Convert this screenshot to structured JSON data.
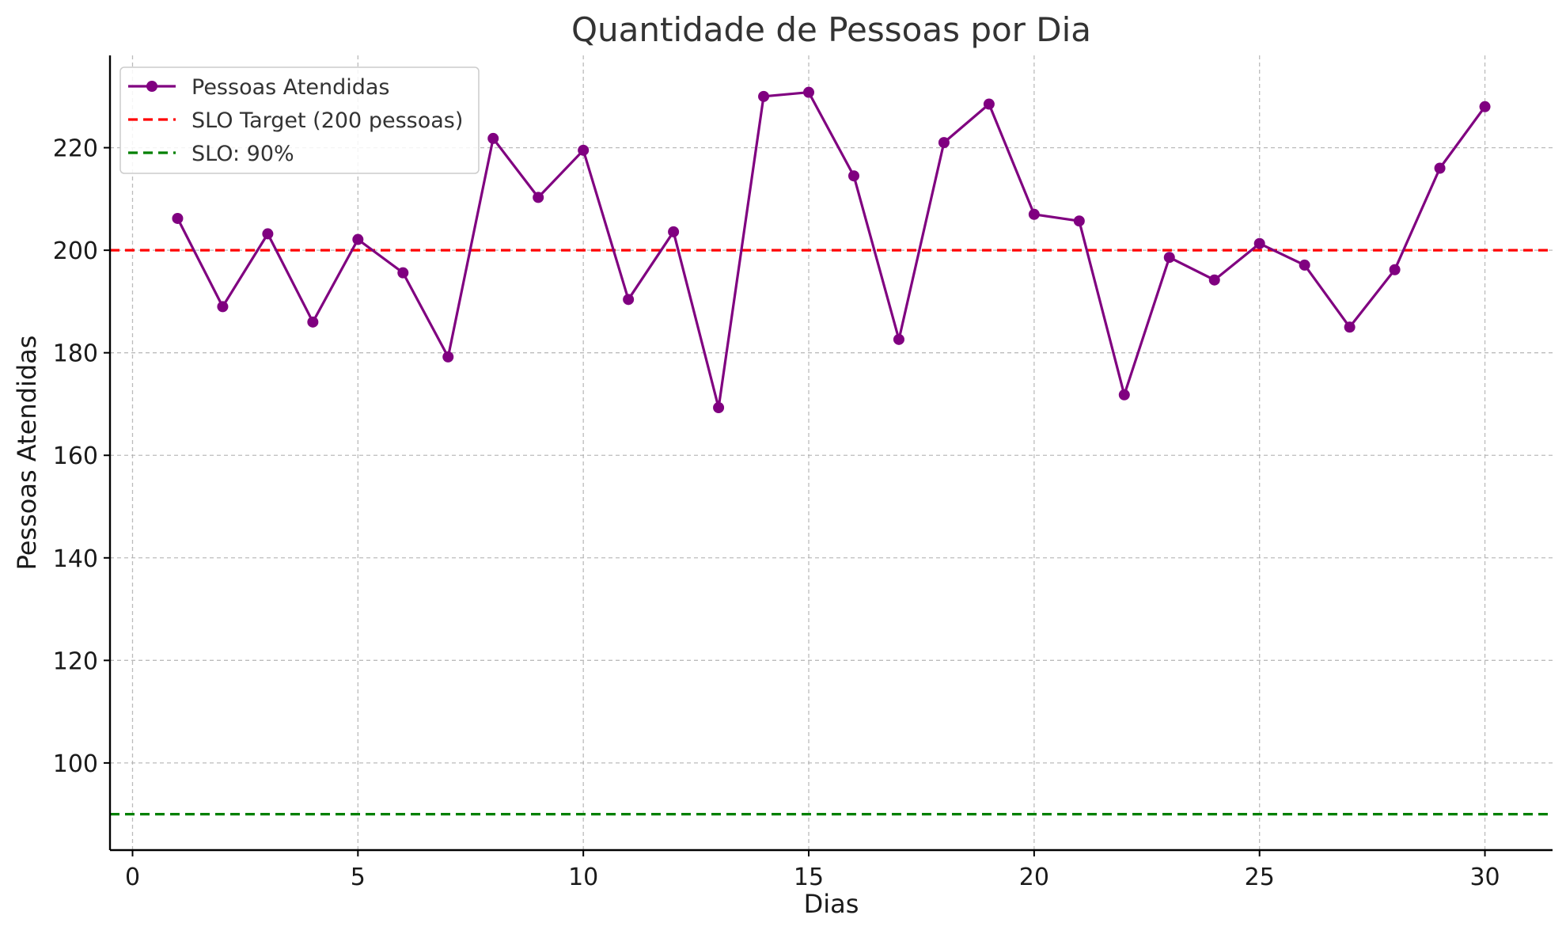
{
  "chart_data": {
    "type": "line",
    "title": "Quantidade de Pessoas por Dia",
    "xlabel": "Dias",
    "ylabel": "Pessoas Atendidas",
    "xlim": [
      -0.5,
      31.5
    ],
    "ylim": [
      83,
      238
    ],
    "xticks": [
      0,
      5,
      10,
      15,
      20,
      25,
      30
    ],
    "yticks": [
      100,
      120,
      140,
      160,
      180,
      200,
      220
    ],
    "grid": true,
    "legend_position": "top-left",
    "series": [
      {
        "name": "Pessoas Atendidas",
        "color": "#800080",
        "marker": "circle",
        "x": [
          1,
          2,
          3,
          4,
          5,
          6,
          7,
          8,
          9,
          10,
          11,
          12,
          13,
          14,
          15,
          16,
          17,
          18,
          19,
          20,
          21,
          22,
          23,
          24,
          25,
          26,
          27,
          28,
          29,
          30
        ],
        "values": [
          206.2,
          189,
          203.2,
          186,
          202.1,
          195.6,
          179.2,
          221.8,
          210.3,
          219.5,
          190.4,
          203.6,
          169.3,
          230,
          230.8,
          214.5,
          182.6,
          221,
          228.5,
          207,
          205.7,
          171.8,
          198.6,
          194.2,
          201.3,
          197.1,
          185,
          196.2,
          216,
          228
        ]
      }
    ],
    "reference_lines": [
      {
        "name": "SLO Target (200 pessoas)",
        "value": 200,
        "color": "#ff0000",
        "style": "dashed"
      },
      {
        "name": "SLO: 90%",
        "value": 90,
        "color": "#008000",
        "style": "dashed"
      }
    ]
  }
}
